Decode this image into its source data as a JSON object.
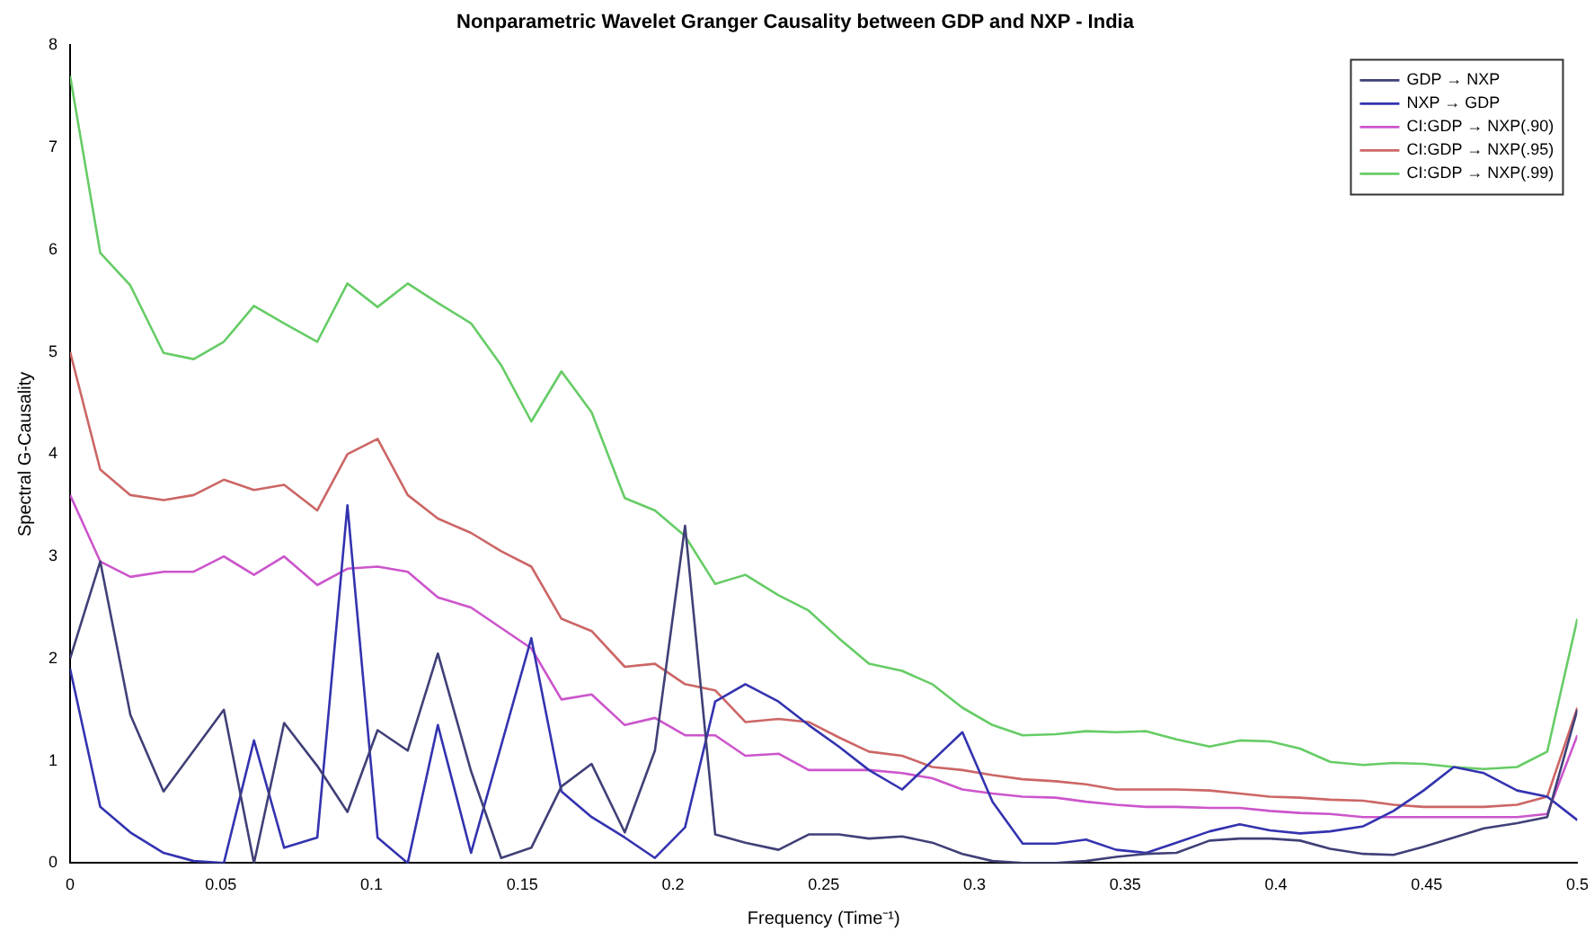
{
  "chart_data": {
    "type": "line",
    "title": "Nonparametric Wavelet Granger Causality between GDP and NXP - India",
    "xlabel": "Frequency (Time⁻¹)",
    "ylabel": "Spectral G-Causality",
    "legend": "top right",
    "grid": false,
    "xlim": [
      0,
      0.5
    ],
    "ylim": [
      0,
      8
    ],
    "xticks": [
      0,
      0.05,
      0.1,
      0.15,
      0.2,
      0.25,
      0.3,
      0.35,
      0.4,
      0.45,
      0.5
    ],
    "yticks": [
      0,
      1,
      2,
      3,
      4,
      5,
      6,
      7,
      8
    ],
    "x": [
      0,
      0.01,
      0.02,
      0.031,
      0.041,
      0.051,
      0.061,
      0.071,
      0.082,
      0.092,
      0.102,
      0.112,
      0.122,
      0.133,
      0.143,
      0.153,
      0.163,
      0.173,
      0.184,
      0.194,
      0.204,
      0.214,
      0.224,
      0.235,
      0.245,
      0.255,
      0.265,
      0.276,
      0.286,
      0.296,
      0.306,
      0.316,
      0.327,
      0.337,
      0.347,
      0.357,
      0.367,
      0.378,
      0.388,
      0.398,
      0.408,
      0.418,
      0.429,
      0.439,
      0.449,
      0.459,
      0.469,
      0.48,
      0.49,
      0.5
    ],
    "series": [
      {
        "name": "GDP → NXP",
        "color": "#404078",
        "values": [
          2.0,
          2.95,
          1.45,
          0.7,
          1.1,
          1.5,
          0,
          1.37,
          0.95,
          0.5,
          1.3,
          1.1,
          2.05,
          0.9,
          0.05,
          0.15,
          0.75,
          0.97,
          0.3,
          1.1,
          3.3,
          0.28,
          0.2,
          0.13,
          0.28,
          0.28,
          0.24,
          0.26,
          0.2,
          0.09,
          0.02,
          0,
          0,
          0.02,
          0.06,
          0.09,
          0.1,
          0.22,
          0.24,
          0.24,
          0.22,
          0.14,
          0.09,
          0.08,
          0.16,
          0.25,
          0.34,
          0.39,
          0.45,
          1.5
        ]
      },
      {
        "name": "NXP → GDP",
        "color": "#3333b0",
        "values": [
          1.9,
          0.55,
          0.3,
          0.1,
          0.02,
          0,
          1.2,
          0.15,
          0.25,
          3.5,
          0.25,
          0,
          1.35,
          0.1,
          1.15,
          2.2,
          0.7,
          0.45,
          0.25,
          0.05,
          0.35,
          1.58,
          1.75,
          1.58,
          1.35,
          1.14,
          0.91,
          0.72,
          1.0,
          1.28,
          0.6,
          0.19,
          0.19,
          0.23,
          0.13,
          0.1,
          0.2,
          0.31,
          0.38,
          0.32,
          0.29,
          0.31,
          0.36,
          0.51,
          0.71,
          0.94,
          0.88,
          0.71,
          0.65,
          0.42
        ]
      },
      {
        "name": "CI:GDP → NXP(.90)",
        "color": "#cc55cc",
        "values": [
          3.6,
          2.95,
          2.8,
          2.85,
          2.85,
          3.0,
          2.82,
          3.0,
          2.72,
          2.88,
          2.9,
          2.85,
          2.6,
          2.5,
          2.3,
          2.1,
          1.6,
          1.65,
          1.35,
          1.42,
          1.25,
          1.25,
          1.05,
          1.07,
          0.91,
          0.91,
          0.91,
          0.88,
          0.83,
          0.72,
          0.68,
          0.65,
          0.64,
          0.6,
          0.57,
          0.55,
          0.55,
          0.54,
          0.54,
          0.51,
          0.49,
          0.48,
          0.45,
          0.45,
          0.45,
          0.45,
          0.45,
          0.45,
          0.48,
          1.25
        ]
      },
      {
        "name": "CI:GDP → NXP(.95)",
        "color": "#cc6666",
        "values": [
          5.0,
          3.85,
          3.6,
          3.55,
          3.6,
          3.75,
          3.65,
          3.7,
          3.45,
          4.0,
          4.15,
          3.6,
          3.37,
          3.23,
          3.05,
          2.9,
          2.39,
          2.27,
          1.92,
          1.95,
          1.75,
          1.69,
          1.38,
          1.41,
          1.38,
          1.23,
          1.09,
          1.05,
          0.94,
          0.91,
          0.86,
          0.82,
          0.8,
          0.77,
          0.72,
          0.72,
          0.72,
          0.71,
          0.68,
          0.65,
          0.64,
          0.62,
          0.61,
          0.57,
          0.55,
          0.55,
          0.55,
          0.57,
          0.65,
          1.52
        ]
      },
      {
        "name": "CI:GDP → NXP(.99)",
        "color": "#66cc66",
        "values": [
          7.7,
          5.97,
          5.65,
          4.99,
          4.93,
          5.1,
          5.45,
          5.28,
          5.1,
          5.67,
          5.44,
          5.67,
          5.48,
          5.28,
          4.87,
          4.32,
          4.81,
          4.41,
          3.57,
          3.45,
          3.2,
          2.73,
          2.82,
          2.62,
          2.47,
          2.2,
          1.95,
          1.88,
          1.75,
          1.52,
          1.35,
          1.25,
          1.26,
          1.29,
          1.28,
          1.29,
          1.21,
          1.14,
          1.2,
          1.19,
          1.12,
          0.99,
          0.96,
          0.98,
          0.97,
          0.94,
          0.92,
          0.94,
          1.09,
          2.39
        ]
      }
    ]
  }
}
